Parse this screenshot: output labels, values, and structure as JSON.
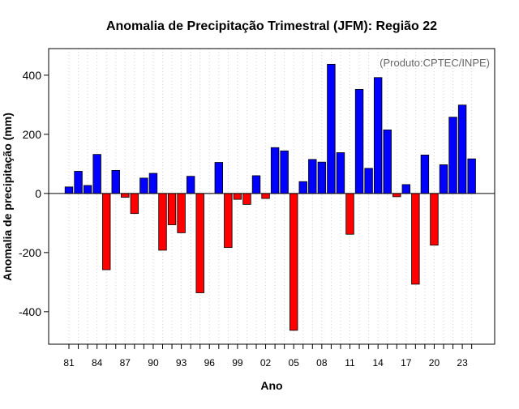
{
  "chart_data": {
    "type": "bar",
    "title": "Anomalia de Precipitação Trimestral (JFM): Região 22",
    "xlabel": "Ano",
    "ylabel": "Anomalia de precipitação (mm)",
    "credit": "(Produto:CPTEC/INPE)",
    "ylim": [
      -510,
      490
    ],
    "yticks": [
      -400,
      -200,
      0,
      200,
      400
    ],
    "ytick_labels": [
      "-400",
      "-200",
      "0",
      "200",
      "400"
    ],
    "xtick_labels": [
      "81",
      "84",
      "87",
      "90",
      "93",
      "96",
      "99",
      "02",
      "05",
      "08",
      "11",
      "14",
      "17",
      "20",
      "23"
    ],
    "grid": "vertical-dotted",
    "positive_color": "#0000ff",
    "negative_color": "#ff0000",
    "categories": [
      "1981",
      "1982",
      "1983",
      "1984",
      "1985",
      "1986",
      "1987",
      "1988",
      "1989",
      "1990",
      "1991",
      "1992",
      "1993",
      "1994",
      "1995",
      "1996",
      "1997",
      "1998",
      "1999",
      "2000",
      "2001",
      "2002",
      "2003",
      "2004",
      "2005",
      "2006",
      "2007",
      "2008",
      "2009",
      "2010",
      "2011",
      "2012",
      "2013",
      "2014",
      "2015",
      "2016",
      "2017",
      "2018",
      "2019",
      "2020",
      "2021",
      "2022",
      "2023",
      "2024"
    ],
    "values": [
      22,
      75,
      27,
      132,
      -258,
      78,
      -13,
      -68,
      52,
      68,
      -192,
      -106,
      -133,
      58,
      -336,
      0,
      105,
      -183,
      -20,
      -37,
      60,
      -17,
      155,
      144,
      -463,
      40,
      115,
      106,
      437,
      138,
      -138,
      352,
      85,
      392,
      215,
      -11,
      30,
      -307,
      130,
      -175,
      97,
      258,
      299,
      117
    ]
  }
}
